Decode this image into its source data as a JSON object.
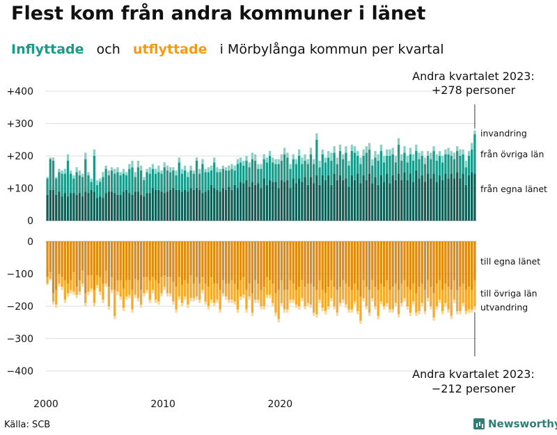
{
  "title": "Flest kom från andra kommuner i länet",
  "subtitle": {
    "part1": "Inflyttade",
    "part2": "och",
    "part3": "utflyttade",
    "part4": "i Mörbylånga  kommun  per  kvartal"
  },
  "source": "Källa: SCB",
  "brand": "Newsworthy",
  "colors": {
    "in_same": "#0e5e55",
    "in_other": "#1a9a88",
    "in_abroad": "#88d0c6",
    "out_same": "#e08a10",
    "out_other": "#f5aa2c",
    "out_abroad": "#fbd79a",
    "grid": "#dddddd",
    "text": "#111111"
  },
  "chart_data": {
    "type": "bar",
    "stacked": true,
    "diverging": true,
    "x_start": 2000,
    "x_ticks": [
      "2000",
      "2010",
      "2020"
    ],
    "y_ticks_top": [
      "+400",
      "+300",
      "+200",
      "+100",
      "0"
    ],
    "y_ticks_bottom": [
      "0",
      "−100",
      "−200",
      "−300",
      "−400"
    ],
    "y_range_top": [
      0,
      400
    ],
    "y_range_bottom": [
      -400,
      0
    ],
    "in_labels": [
      "invandring",
      "från övriga län",
      "från egna länet"
    ],
    "out_labels": [
      "till egna länet",
      "till övriga län",
      "utvandring"
    ],
    "annotation_top": {
      "line1": "Andra kvartalet 2023:",
      "line2": "+278 personer"
    },
    "annotation_bottom": {
      "line1": "Andra kvartalet 2023:",
      "line2": "−212 personer"
    },
    "series_in": [
      {
        "name": "från egna länet",
        "values": [
          80,
          95,
          95,
          80,
          90,
          75,
          85,
          75,
          85,
          85,
          80,
          85,
          75,
          90,
          85,
          95,
          90,
          70,
          75,
          70,
          85,
          90,
          90,
          85,
          80,
          80,
          90,
          95,
          85,
          80,
          90,
          90,
          80,
          75,
          85,
          85,
          100,
          95,
          95,
          90,
          85,
          90,
          95,
          100,
          95,
          95,
          90,
          95,
          90,
          100,
          95,
          100,
          95,
          85,
          90,
          95,
          110,
          100,
          95,
          90,
          100,
          95,
          105,
          95,
          110,
          100,
          120,
          115,
          125,
          105,
          120,
          110,
          115,
          100,
          130,
          110,
          125,
          120,
          120,
          100,
          125,
          120,
          125,
          100,
          130,
          115,
          130,
          120,
          135,
          110,
          135,
          115,
          140,
          110,
          140,
          125,
          140,
          110,
          145,
          125,
          140,
          125,
          130,
          105,
          140,
          125,
          145,
          115,
          140,
          125,
          145,
          115,
          135,
          110,
          140,
          120,
          145,
          115,
          140,
          125,
          145,
          125,
          150,
          125,
          145,
          120,
          155,
          130,
          140,
          120,
          145,
          130,
          145,
          120,
          140,
          125,
          145,
          130,
          145,
          130,
          150,
          130,
          145,
          110,
          140,
          150,
          145
        ]
      },
      {
        "name": "från övriga län",
        "values": [
          50,
          95,
          90,
          50,
          60,
          70,
          60,
          110,
          60,
          45,
          70,
          55,
          60,
          100,
          55,
          25,
          110,
          40,
          45,
          65,
          75,
          50,
          65,
          60,
          70,
          60,
          55,
          45,
          75,
          85,
          45,
          75,
          75,
          50,
          65,
          60,
          60,
          50,
          55,
          55,
          80,
          65,
          55,
          55,
          45,
          85,
          55,
          60,
          45,
          55,
          50,
          85,
          50,
          90,
          60,
          55,
          45,
          80,
          55,
          60,
          60,
          60,
          50,
          65,
          45,
          75,
          60,
          55,
          60,
          60,
          70,
          75,
          45,
          60,
          60,
          70,
          75,
          60,
          55,
          75,
          60,
          85,
          70,
          60,
          60,
          60,
          70,
          55,
          50,
          65,
          70,
          60,
          110,
          55,
          65,
          55,
          55,
          75,
          65,
          50,
          75,
          65,
          80,
          65,
          75,
          85,
          55,
          60,
          60,
          85,
          75,
          55,
          60,
          75,
          75,
          60,
          55,
          85,
          65,
          55,
          90,
          60,
          60,
          55,
          60,
          65,
          60,
          60,
          60,
          55,
          55,
          60,
          70,
          65,
          60,
          55,
          60,
          75,
          55,
          60,
          65,
          70,
          60,
          55,
          60,
          70,
          122
        ]
      },
      {
        "name": "invandring",
        "values": [
          5,
          5,
          10,
          5,
          10,
          10,
          15,
          20,
          10,
          10,
          15,
          15,
          10,
          20,
          10,
          10,
          20,
          15,
          10,
          15,
          10,
          15,
          10,
          15,
          15,
          10,
          15,
          10,
          15,
          20,
          15,
          20,
          15,
          10,
          10,
          20,
          15,
          15,
          20,
          10,
          15,
          15,
          15,
          10,
          15,
          15,
          15,
          15,
          15,
          15,
          10,
          10,
          15,
          15,
          10,
          15,
          15,
          15,
          15,
          10,
          10,
          10,
          15,
          15,
          15,
          15,
          15,
          15,
          15,
          15,
          20,
          20,
          15,
          15,
          15,
          15,
          15,
          15,
          15,
          15,
          20,
          20,
          15,
          15,
          15,
          15,
          20,
          20,
          20,
          15,
          20,
          15,
          20,
          20,
          15,
          15,
          20,
          25,
          20,
          20,
          20,
          15,
          20,
          15,
          20,
          20,
          15,
          20,
          20,
          20,
          20,
          20,
          20,
          20,
          20,
          20,
          20,
          20,
          20,
          20,
          20,
          20,
          20,
          20,
          20,
          20,
          20,
          20,
          15,
          20,
          15,
          20,
          15,
          20,
          15,
          20,
          15,
          20,
          15,
          20,
          15,
          20,
          15,
          20,
          15,
          20,
          11
        ]
      }
    ],
    "series_out": [
      {
        "name": "till egna länet",
        "values": [
          110,
          95,
          160,
          150,
          100,
          110,
          120,
          130,
          120,
          95,
          140,
          120,
          90,
          160,
          105,
          105,
          150,
          105,
          110,
          130,
          90,
          140,
          110,
          150,
          120,
          120,
          145,
          120,
          120,
          150,
          115,
          120,
          150,
          110,
          110,
          120,
          110,
          120,
          130,
          110,
          105,
          110,
          110,
          125,
          140,
          110,
          135,
          120,
          130,
          105,
          130,
          110,
          130,
          110,
          130,
          140,
          110,
          130,
          130,
          150,
          120,
          130,
          130,
          120,
          130,
          150,
          120,
          110,
          150,
          130,
          160,
          120,
          130,
          150,
          140,
          110,
          120,
          130,
          160,
          150,
          120,
          150,
          150,
          120,
          130,
          150,
          140,
          120,
          140,
          130,
          130,
          140,
          150,
          120,
          150,
          160,
          140,
          120,
          140,
          150,
          140,
          120,
          130,
          140,
          150,
          130,
          150,
          170,
          120,
          140,
          150,
          120,
          140,
          150,
          130,
          140,
          120,
          150,
          140,
          130,
          150,
          130,
          120,
          140,
          150,
          130,
          160,
          140,
          130,
          150,
          120,
          140,
          160,
          130,
          120,
          150,
          130,
          140,
          150,
          120,
          150,
          140,
          130,
          150,
          140,
          150,
          120
        ]
      },
      {
        "name": "till övriga län",
        "values": [
          20,
          20,
          25,
          45,
          30,
          30,
          60,
          30,
          30,
          60,
          25,
          35,
          40,
          30,
          50,
          40,
          40,
          30,
          45,
          50,
          40,
          60,
          40,
          80,
          35,
          50,
          60,
          50,
          45,
          60,
          50,
          55,
          45,
          50,
          40,
          60,
          40,
          60,
          55,
          50,
          35,
          50,
          50,
          60,
          70,
          60,
          55,
          50,
          65,
          70,
          45,
          60,
          50,
          40,
          55,
          60,
          70,
          60,
          50,
          60,
          40,
          40,
          50,
          60,
          55,
          60,
          50,
          55,
          60,
          40,
          60,
          60,
          50,
          50,
          60,
          55,
          45,
          60,
          60,
          90,
          70,
          60,
          60,
          60,
          50,
          45,
          60,
          55,
          60,
          60,
          65,
          80,
          75,
          60,
          55,
          55,
          60,
          55,
          60,
          70,
          50,
          60,
          65,
          70,
          60,
          55,
          65,
          75,
          55,
          60,
          70,
          55,
          60,
          80,
          55,
          60,
          70,
          60,
          70,
          60,
          75,
          60,
          55,
          60,
          70,
          55,
          60,
          75,
          60,
          65,
          55,
          60,
          75,
          70,
          60,
          65,
          60,
          70,
          80,
          60,
          65,
          75,
          60,
          65,
          70,
          60,
          80
        ]
      },
      {
        "name": "utvandring",
        "values": [
          5,
          5,
          10,
          10,
          10,
          10,
          10,
          10,
          10,
          10,
          10,
          10,
          10,
          10,
          10,
          10,
          10,
          10,
          10,
          10,
          10,
          10,
          10,
          10,
          10,
          10,
          10,
          10,
          10,
          10,
          10,
          10,
          10,
          10,
          10,
          10,
          10,
          10,
          10,
          10,
          10,
          10,
          10,
          10,
          10,
          10,
          10,
          10,
          10,
          10,
          10,
          10,
          10,
          10,
          10,
          10,
          10,
          10,
          10,
          10,
          10,
          10,
          10,
          10,
          10,
          10,
          10,
          10,
          10,
          10,
          10,
          10,
          10,
          10,
          10,
          10,
          10,
          10,
          10,
          10,
          10,
          10,
          10,
          10,
          10,
          10,
          10,
          10,
          10,
          10,
          10,
          10,
          10,
          10,
          10,
          10,
          10,
          10,
          10,
          10,
          10,
          10,
          10,
          10,
          10,
          10,
          10,
          10,
          10,
          10,
          10,
          10,
          10,
          10,
          10,
          10,
          10,
          10,
          10,
          10,
          10,
          10,
          10,
          10,
          10,
          10,
          10,
          10,
          10,
          10,
          10,
          10,
          10,
          10,
          10,
          10,
          10,
          10,
          10,
          10,
          10,
          10,
          10,
          10,
          10,
          10,
          12
        ]
      }
    ]
  }
}
